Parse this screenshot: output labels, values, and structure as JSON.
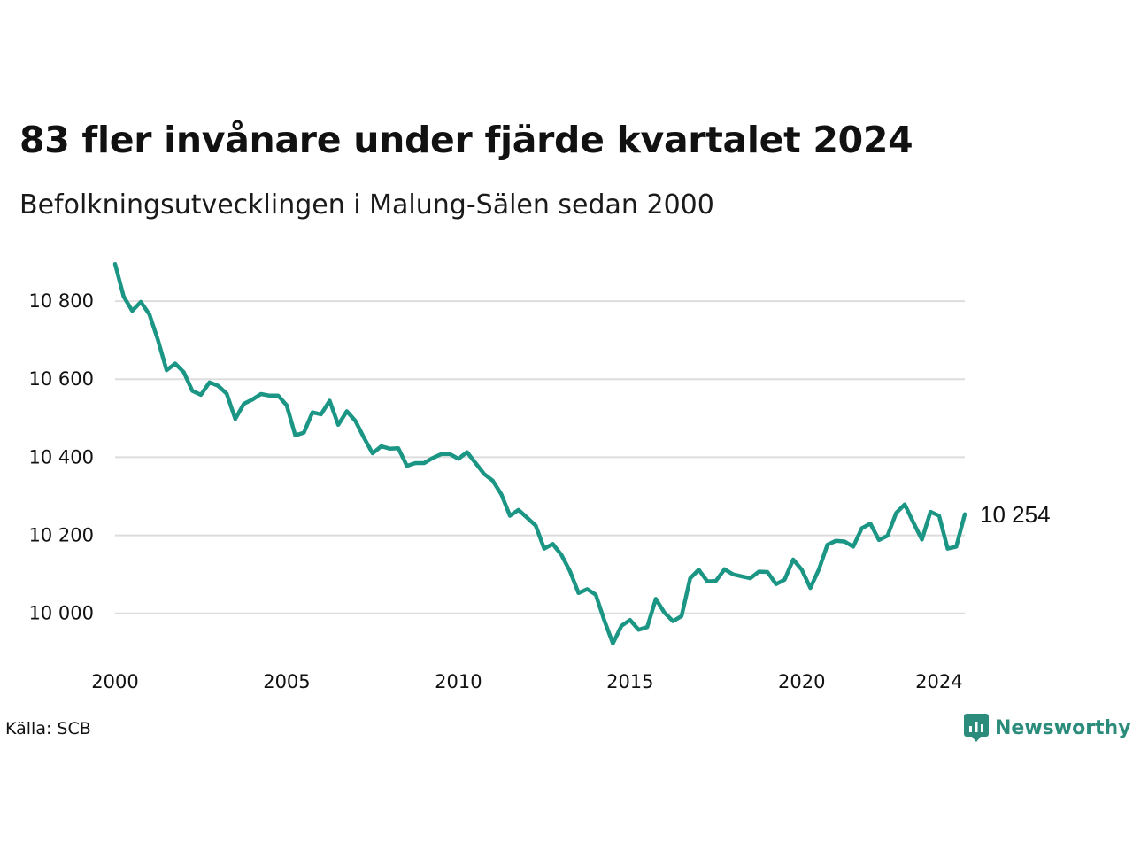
{
  "title": "83 fler invånare under fjärde kvartalet 2024",
  "subtitle": "Befolkningsutvecklingen i Malung-Sälen sedan 2000",
  "source": "Källa: SCB",
  "brand": {
    "name": "Newsworthy",
    "icon": "newsworthy-logo-icon",
    "color": "#2c8c7c"
  },
  "colors": {
    "line": "#1b9584",
    "grid": "#dddddd"
  },
  "chart_data": {
    "type": "line",
    "x_start": 2000.0,
    "x_step": 0.25,
    "xlim": [
      2000.0,
      2024.75
    ],
    "ylim": [
      9920,
      10900
    ],
    "x_ticks": [
      {
        "value": 2000,
        "label": "2000"
      },
      {
        "value": 2005,
        "label": "2005"
      },
      {
        "value": 2010,
        "label": "2010"
      },
      {
        "value": 2015,
        "label": "2015"
      },
      {
        "value": 2020,
        "label": "2020"
      },
      {
        "value": 2024,
        "label": "2024"
      }
    ],
    "y_ticks": [
      {
        "value": 10000,
        "label": "10 000"
      },
      {
        "value": 10200,
        "label": "10 200"
      },
      {
        "value": 10400,
        "label": "10 400"
      },
      {
        "value": 10600,
        "label": "10 600"
      },
      {
        "value": 10800,
        "label": "10 800"
      }
    ],
    "grid": true,
    "end_label": "10 254",
    "values": [
      10895,
      10812,
      10775,
      10798,
      10766,
      10700,
      10623,
      10640,
      10618,
      10570,
      10560,
      10592,
      10583,
      10563,
      10498,
      10537,
      10548,
      10562,
      10558,
      10558,
      10533,
      10456,
      10463,
      10515,
      10510,
      10545,
      10483,
      10518,
      10493,
      10450,
      10410,
      10428,
      10422,
      10423,
      10378,
      10385,
      10385,
      10398,
      10408,
      10408,
      10396,
      10413,
      10385,
      10357,
      10340,
      10305,
      10250,
      10265,
      10245,
      10225,
      10166,
      10178,
      10150,
      10108,
      10052,
      10062,
      10048,
      9982,
      9923,
      9968,
      9983,
      9958,
      9965,
      10037,
      10002,
      9980,
      9993,
      10090,
      10112,
      10082,
      10083,
      10113,
      10100,
      10095,
      10090,
      10107,
      10106,
      10075,
      10086,
      10138,
      10112,
      10065,
      10113,
      10176,
      10186,
      10184,
      10171,
      10218,
      10230,
      10188,
      10199,
      10257,
      10279,
      10233,
      10189,
      10260,
      10250,
      10166,
      10171,
      10254
    ]
  }
}
